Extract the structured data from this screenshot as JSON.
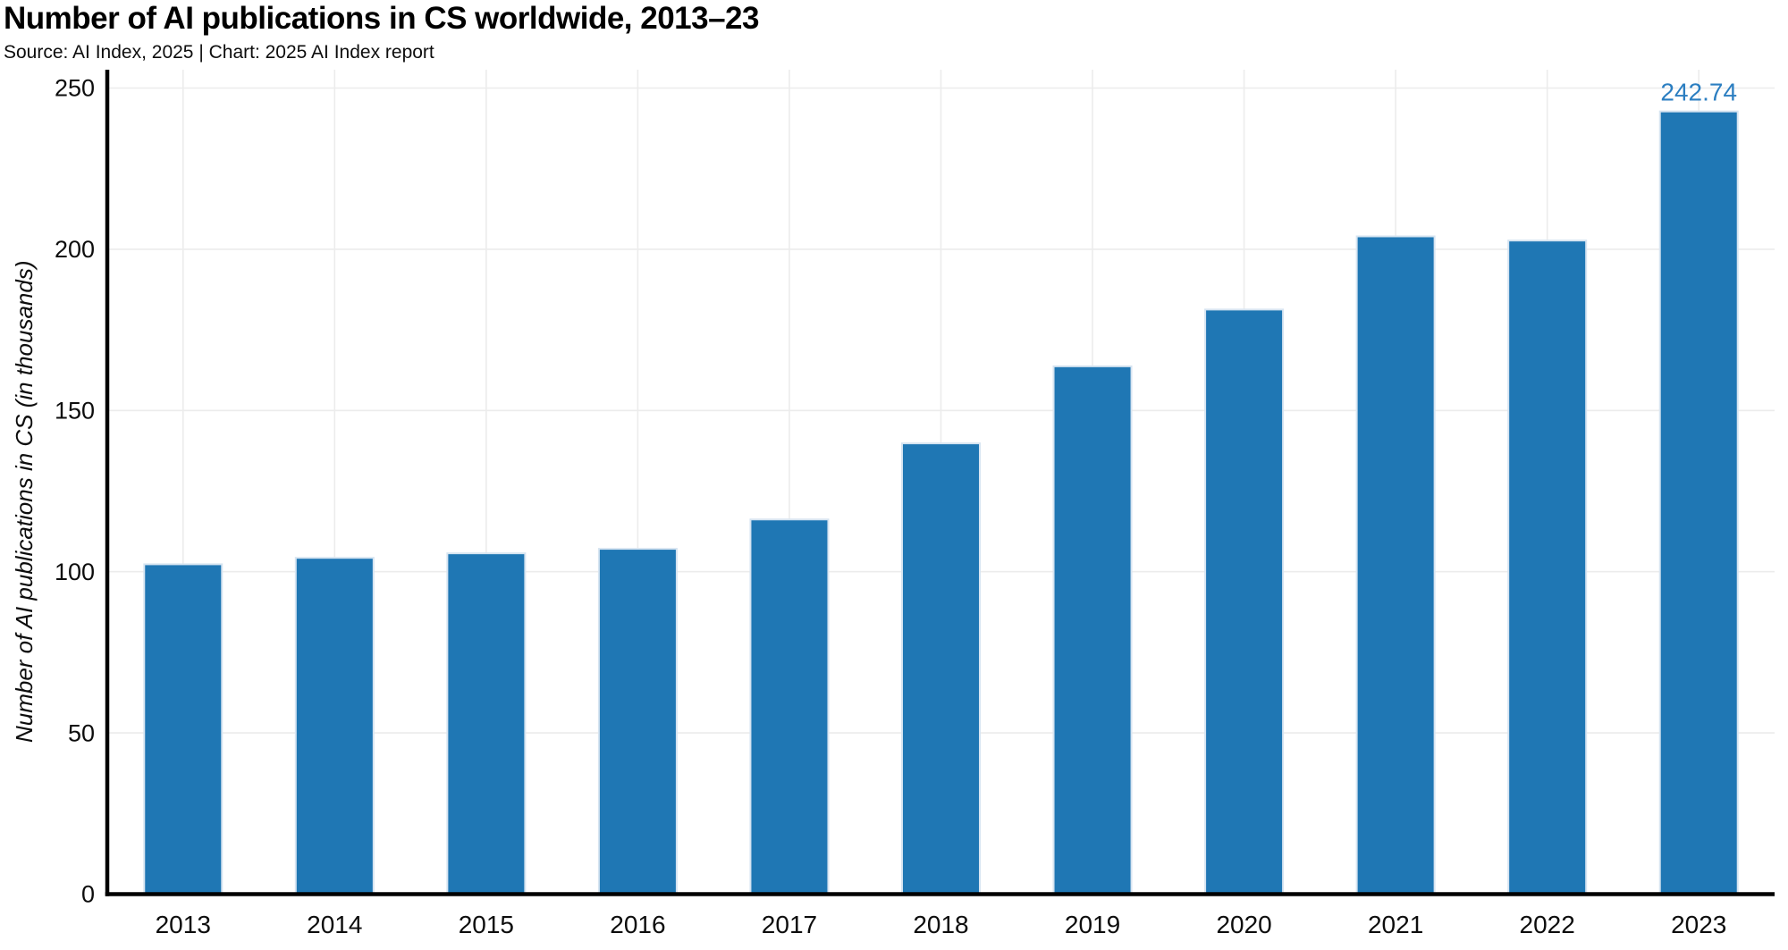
{
  "header": {
    "title": "Number of AI publications in CS worldwide, 2013–23",
    "source": "Source: AI Index, 2025 | Chart: 2025 AI Index report"
  },
  "chart_data": {
    "type": "bar",
    "title": "Number of AI publications in CS worldwide, 2013–23",
    "source": "Source: AI Index, 2025 | Chart: 2025 AI Index report",
    "categories": [
      "2013",
      "2014",
      "2015",
      "2016",
      "2017",
      "2018",
      "2019",
      "2020",
      "2021",
      "2022",
      "2023"
    ],
    "values": [
      102.3,
      104.3,
      105.7,
      107.1,
      116.2,
      139.8,
      163.7,
      181.3,
      204.0,
      202.7,
      242.74
    ],
    "value_labels": {
      "2023": "242.74"
    },
    "xlabel": "",
    "ylabel": "Number of AI publications in CS (in thousands)",
    "ylim": [
      0,
      250
    ],
    "yticks": [
      0,
      50,
      100,
      150,
      200,
      250
    ],
    "grid": true,
    "legend": "none",
    "colors": {
      "bar": "#1f77b4",
      "bar_edge": "#d6e4f1",
      "value_label": "#2b7ec1",
      "grid": "#ececec",
      "axis": "#000000",
      "tick_text": "#0d0d0d"
    }
  }
}
